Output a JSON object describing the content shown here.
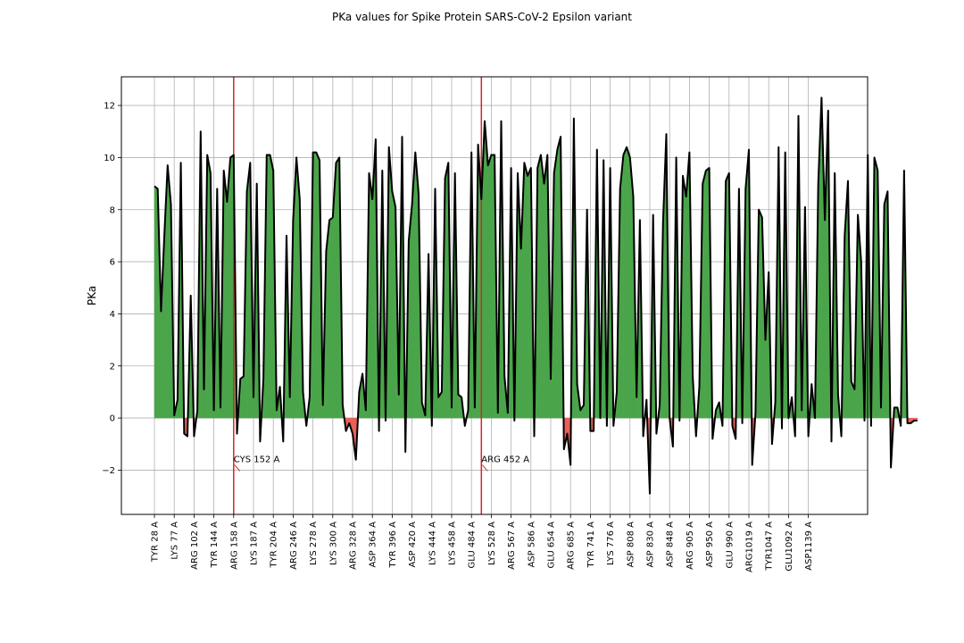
{
  "chart_data": {
    "type": "area",
    "title": "PKa values for Spike Protein SARS-CoV-2 Epsilon variant",
    "xlabel": "",
    "ylabel": "PKa",
    "ylim": [
      -3.7,
      13.1
    ],
    "grid": true,
    "y_ticks": [
      -2,
      0,
      2,
      4,
      6,
      8,
      10,
      12
    ],
    "x_tick_labels": [
      "TYR  28 A",
      "LYS  77 A",
      "ARG 102 A",
      "TYR 144 A",
      "ARG 158 A",
      "LYS 187 A",
      "TYR 204 A",
      "ARG 246 A",
      "LYS 278 A",
      "LYS 300 A",
      "ARG 328 A",
      "ASP 364 A",
      "TYR 396 A",
      "ASP 420 A",
      "LYS 444 A",
      "LYS 458 A",
      "GLU 484 A",
      "LYS 528 A",
      "ARG 567 A",
      "ASP 586 A",
      "GLU 654 A",
      "ARG 685 A",
      "TYR 741 A",
      "LYS 776 A",
      "ASP 808 A",
      "ASP 830 A",
      "ASP 848 A",
      "ARG 905 A",
      "ASP 950 A",
      "GLU 990 A",
      "ARG1019 A",
      "TYR1047 A",
      "GLU1092 A",
      "ASP1139 A"
    ],
    "tick_every": 6,
    "colors": {
      "line": "#000000",
      "positive_fill": "#4aa54a",
      "negative_fill": "#e8605a",
      "marker": "#d62728",
      "grid": "#b0b0b0"
    },
    "series": [
      {
        "values": [
          8.9,
          8.8,
          4.1,
          7.0,
          9.7,
          8.2,
          0.1,
          0.7,
          9.8,
          -0.6,
          -0.7,
          4.7,
          -0.7,
          0.3,
          11.0,
          1.1,
          10.1,
          9.4,
          0.3,
          8.8,
          0.4,
          9.5,
          8.3,
          10.0,
          10.1,
          -0.6,
          1.5,
          1.6,
          8.7,
          9.8,
          0.8,
          9.0,
          -0.9,
          1.5,
          10.1,
          10.1,
          9.5,
          0.3,
          1.2,
          -0.9,
          7.0,
          0.8,
          7.6,
          10.0,
          8.4,
          1.0,
          -0.3,
          0.8,
          10.2,
          10.2,
          9.9,
          0.5,
          6.4,
          7.6,
          7.7,
          9.8,
          10.0,
          0.5,
          -0.5,
          -0.2,
          -0.6,
          -1.6,
          1.0,
          1.7,
          0.3,
          9.4,
          8.4,
          10.7,
          -0.5,
          9.5,
          -0.1,
          10.4,
          8.7,
          8.1,
          0.9,
          10.8,
          -1.3,
          6.8,
          8.2,
          10.2,
          8.6,
          0.6,
          0.1,
          6.3,
          -0.3,
          8.8,
          0.8,
          1.0,
          9.2,
          9.8,
          0.4,
          9.4,
          0.9,
          0.8,
          -0.3,
          0.3,
          10.2,
          0.4,
          10.5,
          8.4,
          11.4,
          9.7,
          10.1,
          10.1,
          0.2,
          11.4,
          1.6,
          0.2,
          9.6,
          -0.1,
          9.4,
          6.5,
          9.8,
          9.3,
          9.6,
          -0.7,
          9.6,
          10.1,
          9.0,
          10.1,
          1.5,
          9.4,
          10.3,
          10.8,
          -1.2,
          -0.6,
          -1.8,
          11.5,
          1.3,
          0.3,
          0.5,
          8.0,
          -0.5,
          -0.5,
          10.3,
          0.0,
          9.9,
          -0.3,
          9.6,
          -0.3,
          1.0,
          8.8,
          10.1,
          10.4,
          10.0,
          8.5,
          0.8,
          7.6,
          -0.7,
          0.7,
          -2.9,
          7.8,
          -0.6,
          0.5,
          7.5,
          10.9,
          0.0,
          -1.1,
          10.0,
          -0.1,
          9.3,
          8.5,
          10.2,
          1.6,
          -0.7,
          1.2,
          9.0,
          9.5,
          9.6,
          -0.8,
          0.3,
          0.6,
          -0.3,
          9.1,
          9.4,
          -0.3,
          -0.8,
          8.8,
          -0.2,
          8.8,
          10.3,
          -1.8,
          0.2,
          8.0,
          7.7,
          3.0,
          5.6,
          -1.0,
          0.6,
          10.4,
          -0.4,
          10.2,
          0.0,
          0.8,
          -0.7,
          11.6,
          0.3,
          8.1,
          -0.7,
          1.3,
          0.0,
          9.0,
          12.3,
          7.6,
          11.8,
          -0.9,
          9.4,
          0.9,
          -0.7,
          7.0,
          9.1,
          1.4,
          1.1,
          7.8,
          6.0,
          -0.1,
          10.1,
          -0.3,
          10.0,
          9.5,
          0.4,
          8.2,
          8.7,
          -1.9,
          0.4,
          0.4,
          -0.3,
          9.5,
          -0.2,
          -0.2,
          -0.1,
          -0.1
        ]
      }
    ],
    "markers": [
      {
        "index": 24,
        "label": "CYS 152 A"
      },
      {
        "index": 99,
        "label": "ARG 452 A"
      }
    ]
  }
}
